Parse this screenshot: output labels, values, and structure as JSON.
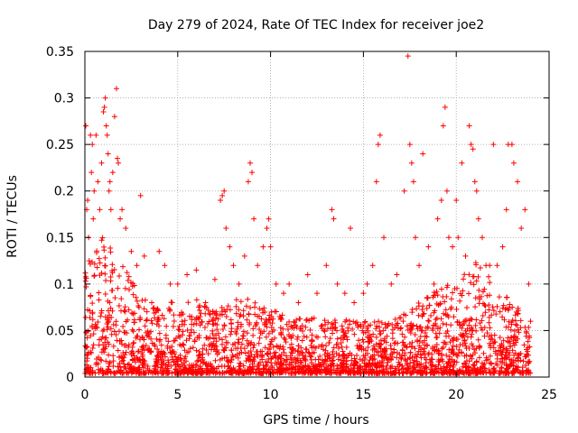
{
  "chart_data": {
    "type": "scatter",
    "title": "Day 279 of 2024, Rate Of TEC Index for receiver joe2",
    "xlabel": "GPS time / hours",
    "ylabel": "ROTI / TECUs",
    "xlim": [
      0,
      25
    ],
    "ylim": [
      0,
      0.35
    ],
    "x_ticks": [
      0,
      5,
      10,
      15,
      20,
      25
    ],
    "y_ticks": [
      0,
      0.05,
      0.1,
      0.15,
      0.2,
      0.25,
      0.3,
      0.35
    ],
    "x_tick_labels": [
      "0",
      "5",
      "10",
      "15",
      "20",
      "25"
    ],
    "y_tick_labels": [
      "0",
      "0.05",
      "0.1",
      "0.15",
      "0.2",
      "0.25",
      "0.3",
      "0.35"
    ],
    "grid": true,
    "marker": "+",
    "series": [
      {
        "name": "ROTI",
        "color": "#ff0000",
        "points": [
          [
            0.05,
            0.27
          ],
          [
            0.1,
            0.18
          ],
          [
            0.15,
            0.19
          ],
          [
            0.2,
            0.15
          ],
          [
            0.3,
            0.26
          ],
          [
            0.35,
            0.22
          ],
          [
            0.4,
            0.25
          ],
          [
            0.45,
            0.17
          ],
          [
            0.5,
            0.2
          ],
          [
            0.6,
            0.26
          ],
          [
            0.7,
            0.21
          ],
          [
            0.8,
            0.18
          ],
          [
            0.9,
            0.23
          ],
          [
            1.0,
            0.285
          ],
          [
            1.05,
            0.29
          ],
          [
            1.1,
            0.3
          ],
          [
            1.15,
            0.27
          ],
          [
            1.2,
            0.26
          ],
          [
            1.25,
            0.24
          ],
          [
            1.3,
            0.2
          ],
          [
            1.35,
            0.21
          ],
          [
            1.4,
            0.18
          ],
          [
            1.5,
            0.22
          ],
          [
            1.6,
            0.28
          ],
          [
            1.7,
            0.31
          ],
          [
            1.75,
            0.235
          ],
          [
            1.8,
            0.23
          ],
          [
            1.9,
            0.17
          ],
          [
            2.0,
            0.18
          ],
          [
            2.2,
            0.16
          ],
          [
            2.5,
            0.135
          ],
          [
            2.8,
            0.12
          ],
          [
            3.0,
            0.195
          ],
          [
            3.2,
            0.13
          ],
          [
            3.6,
            0.08
          ],
          [
            4.0,
            0.135
          ],
          [
            4.3,
            0.12
          ],
          [
            4.6,
            0.1
          ],
          [
            5.0,
            0.1
          ],
          [
            5.5,
            0.11
          ],
          [
            6.0,
            0.115
          ],
          [
            6.5,
            0.08
          ],
          [
            7.0,
            0.105
          ],
          [
            7.3,
            0.19
          ],
          [
            7.4,
            0.195
          ],
          [
            7.5,
            0.2
          ],
          [
            7.6,
            0.16
          ],
          [
            7.8,
            0.14
          ],
          [
            8.0,
            0.12
          ],
          [
            8.3,
            0.1
          ],
          [
            8.6,
            0.13
          ],
          [
            8.8,
            0.21
          ],
          [
            8.9,
            0.23
          ],
          [
            9.0,
            0.22
          ],
          [
            9.1,
            0.17
          ],
          [
            9.3,
            0.12
          ],
          [
            9.6,
            0.14
          ],
          [
            9.8,
            0.16
          ],
          [
            9.9,
            0.17
          ],
          [
            10.0,
            0.14
          ],
          [
            10.3,
            0.1
          ],
          [
            10.7,
            0.09
          ],
          [
            11.0,
            0.1
          ],
          [
            11.5,
            0.08
          ],
          [
            12.0,
            0.11
          ],
          [
            12.5,
            0.09
          ],
          [
            13.0,
            0.12
          ],
          [
            13.3,
            0.18
          ],
          [
            13.4,
            0.17
          ],
          [
            13.6,
            0.1
          ],
          [
            14.0,
            0.09
          ],
          [
            14.3,
            0.16
          ],
          [
            14.5,
            0.08
          ],
          [
            15.0,
            0.09
          ],
          [
            15.2,
            0.1
          ],
          [
            15.5,
            0.12
          ],
          [
            15.7,
            0.21
          ],
          [
            15.8,
            0.25
          ],
          [
            15.9,
            0.26
          ],
          [
            16.1,
            0.15
          ],
          [
            16.5,
            0.1
          ],
          [
            16.8,
            0.11
          ],
          [
            17.2,
            0.2
          ],
          [
            17.4,
            0.345
          ],
          [
            17.5,
            0.25
          ],
          [
            17.6,
            0.23
          ],
          [
            17.7,
            0.21
          ],
          [
            17.8,
            0.15
          ],
          [
            18.0,
            0.12
          ],
          [
            18.2,
            0.24
          ],
          [
            18.5,
            0.14
          ],
          [
            18.8,
            0.1
          ],
          [
            19.0,
            0.17
          ],
          [
            19.2,
            0.19
          ],
          [
            19.3,
            0.27
          ],
          [
            19.4,
            0.29
          ],
          [
            19.5,
            0.2
          ],
          [
            19.6,
            0.15
          ],
          [
            19.8,
            0.14
          ],
          [
            20.0,
            0.19
          ],
          [
            20.1,
            0.15
          ],
          [
            20.3,
            0.23
          ],
          [
            20.5,
            0.13
          ],
          [
            20.7,
            0.27
          ],
          [
            20.8,
            0.25
          ],
          [
            20.9,
            0.245
          ],
          [
            21.0,
            0.21
          ],
          [
            21.1,
            0.2
          ],
          [
            21.2,
            0.17
          ],
          [
            21.4,
            0.15
          ],
          [
            21.6,
            0.12
          ],
          [
            21.8,
            0.12
          ],
          [
            22.0,
            0.25
          ],
          [
            22.2,
            0.12
          ],
          [
            22.5,
            0.14
          ],
          [
            22.7,
            0.18
          ],
          [
            22.8,
            0.25
          ],
          [
            23.0,
            0.25
          ],
          [
            23.1,
            0.23
          ],
          [
            23.3,
            0.21
          ],
          [
            23.5,
            0.16
          ],
          [
            23.7,
            0.18
          ],
          [
            23.9,
            0.1
          ],
          [
            24.0,
            0.06
          ]
        ],
        "dense_background": {
          "x_range": [
            0,
            24
          ],
          "baseline_envelope": [
            [
              0,
              0.12
            ],
            [
              1,
              0.15
            ],
            [
              2,
              0.12
            ],
            [
              3,
              0.09
            ],
            [
              4,
              0.07
            ],
            [
              5,
              0.08
            ],
            [
              6,
              0.08
            ],
            [
              7,
              0.07
            ],
            [
              8,
              0.08
            ],
            [
              9,
              0.08
            ],
            [
              10,
              0.07
            ],
            [
              11,
              0.06
            ],
            [
              12,
              0.06
            ],
            [
              13,
              0.06
            ],
            [
              14,
              0.06
            ],
            [
              15,
              0.06
            ],
            [
              16,
              0.06
            ],
            [
              17,
              0.06
            ],
            [
              18,
              0.08
            ],
            [
              19,
              0.09
            ],
            [
              20,
              0.1
            ],
            [
              21,
              0.12
            ],
            [
              22,
              0.1
            ],
            [
              23,
              0.08
            ],
            [
              24,
              0.05
            ]
          ]
        }
      }
    ]
  }
}
